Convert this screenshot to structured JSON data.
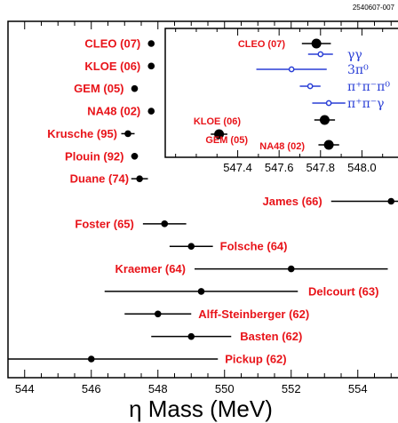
{
  "chart_data": [
    {
      "type": "scatter",
      "title": "",
      "xlabel": "η Mass (MeV)",
      "ylabel": "",
      "xlim": [
        543.5,
        555.5
      ],
      "xticks": [
        544,
        546,
        548,
        550,
        552,
        554
      ],
      "xtick_labels": [
        "544",
        "546",
        "548",
        "550",
        "552",
        "554"
      ],
      "corner_label": "2540607-007",
      "points": [
        {
          "name": "CLEO (07)",
          "x": 547.8,
          "err": 0.0
        },
        {
          "name": "KLOE (06)",
          "x": 547.8,
          "err": 0.0
        },
        {
          "name": "GEM (05)",
          "x": 547.3,
          "err": 0.0
        },
        {
          "name": "NA48 (02)",
          "x": 547.8,
          "err": 0.0
        },
        {
          "name": "Krusche (95)",
          "x": 547.1,
          "err": 0.2
        },
        {
          "name": "Plouin (92)",
          "x": 547.3,
          "err": 0.1
        },
        {
          "name": "Duane (74)",
          "x": 547.45,
          "err": 0.25
        },
        {
          "name": "James (66)",
          "x": 555.0,
          "err": 1.8
        },
        {
          "name": "Foster (65)",
          "x": 548.2,
          "err": 0.65
        },
        {
          "name": "Folsche (64)",
          "x": 549.0,
          "err": 0.65
        },
        {
          "name": "Kraemer (64)",
          "x": 552.0,
          "err": 2.9
        },
        {
          "name": "Delcourt (63)",
          "x": 549.3,
          "err": 2.9
        },
        {
          "name": "Alff-Steinberger (62)",
          "x": 548.0,
          "err": 1.0
        },
        {
          "name": "Basten (62)",
          "x": 549.0,
          "err": 1.2
        },
        {
          "name": "Pickup (62)",
          "x": 546.0,
          "err": 3.8
        }
      ]
    },
    {
      "type": "scatter",
      "title": "",
      "xlim": [
        547.05,
        548.2
      ],
      "xticks": [
        547.4,
        547.6,
        547.8,
        548.0
      ],
      "xtick_labels": [
        "547.4",
        "547.6",
        "547.8",
        "548.0"
      ],
      "points": [
        {
          "name": "CLEO (07)",
          "x": 547.78,
          "err": 0.07,
          "marker": "filled",
          "color": "#000000"
        },
        {
          "name": "",
          "legend": "γγ",
          "x": 547.8,
          "err": 0.06,
          "marker": "open",
          "color": "#2a3fd6"
        },
        {
          "name": "",
          "legend": "3π⁰",
          "x": 547.66,
          "err": 0.17,
          "marker": "open",
          "color": "#2a3fd6"
        },
        {
          "name": "",
          "legend": "π⁺π⁻π⁰",
          "x": 547.75,
          "err": 0.05,
          "marker": "open",
          "color": "#2a3fd6"
        },
        {
          "name": "",
          "legend": "π⁺π⁻γ",
          "x": 547.84,
          "err": 0.08,
          "marker": "open",
          "color": "#2a3fd6"
        },
        {
          "name": "KLOE (06)",
          "x": 547.82,
          "err": 0.05,
          "marker": "filled",
          "color": "#000000"
        },
        {
          "name": "GEM (05)",
          "x": 547.31,
          "err": 0.04,
          "marker": "filled",
          "color": "#000000"
        },
        {
          "name": "NA48 (02)",
          "x": 547.84,
          "err": 0.05,
          "marker": "filled",
          "color": "#000000"
        }
      ]
    }
  ]
}
